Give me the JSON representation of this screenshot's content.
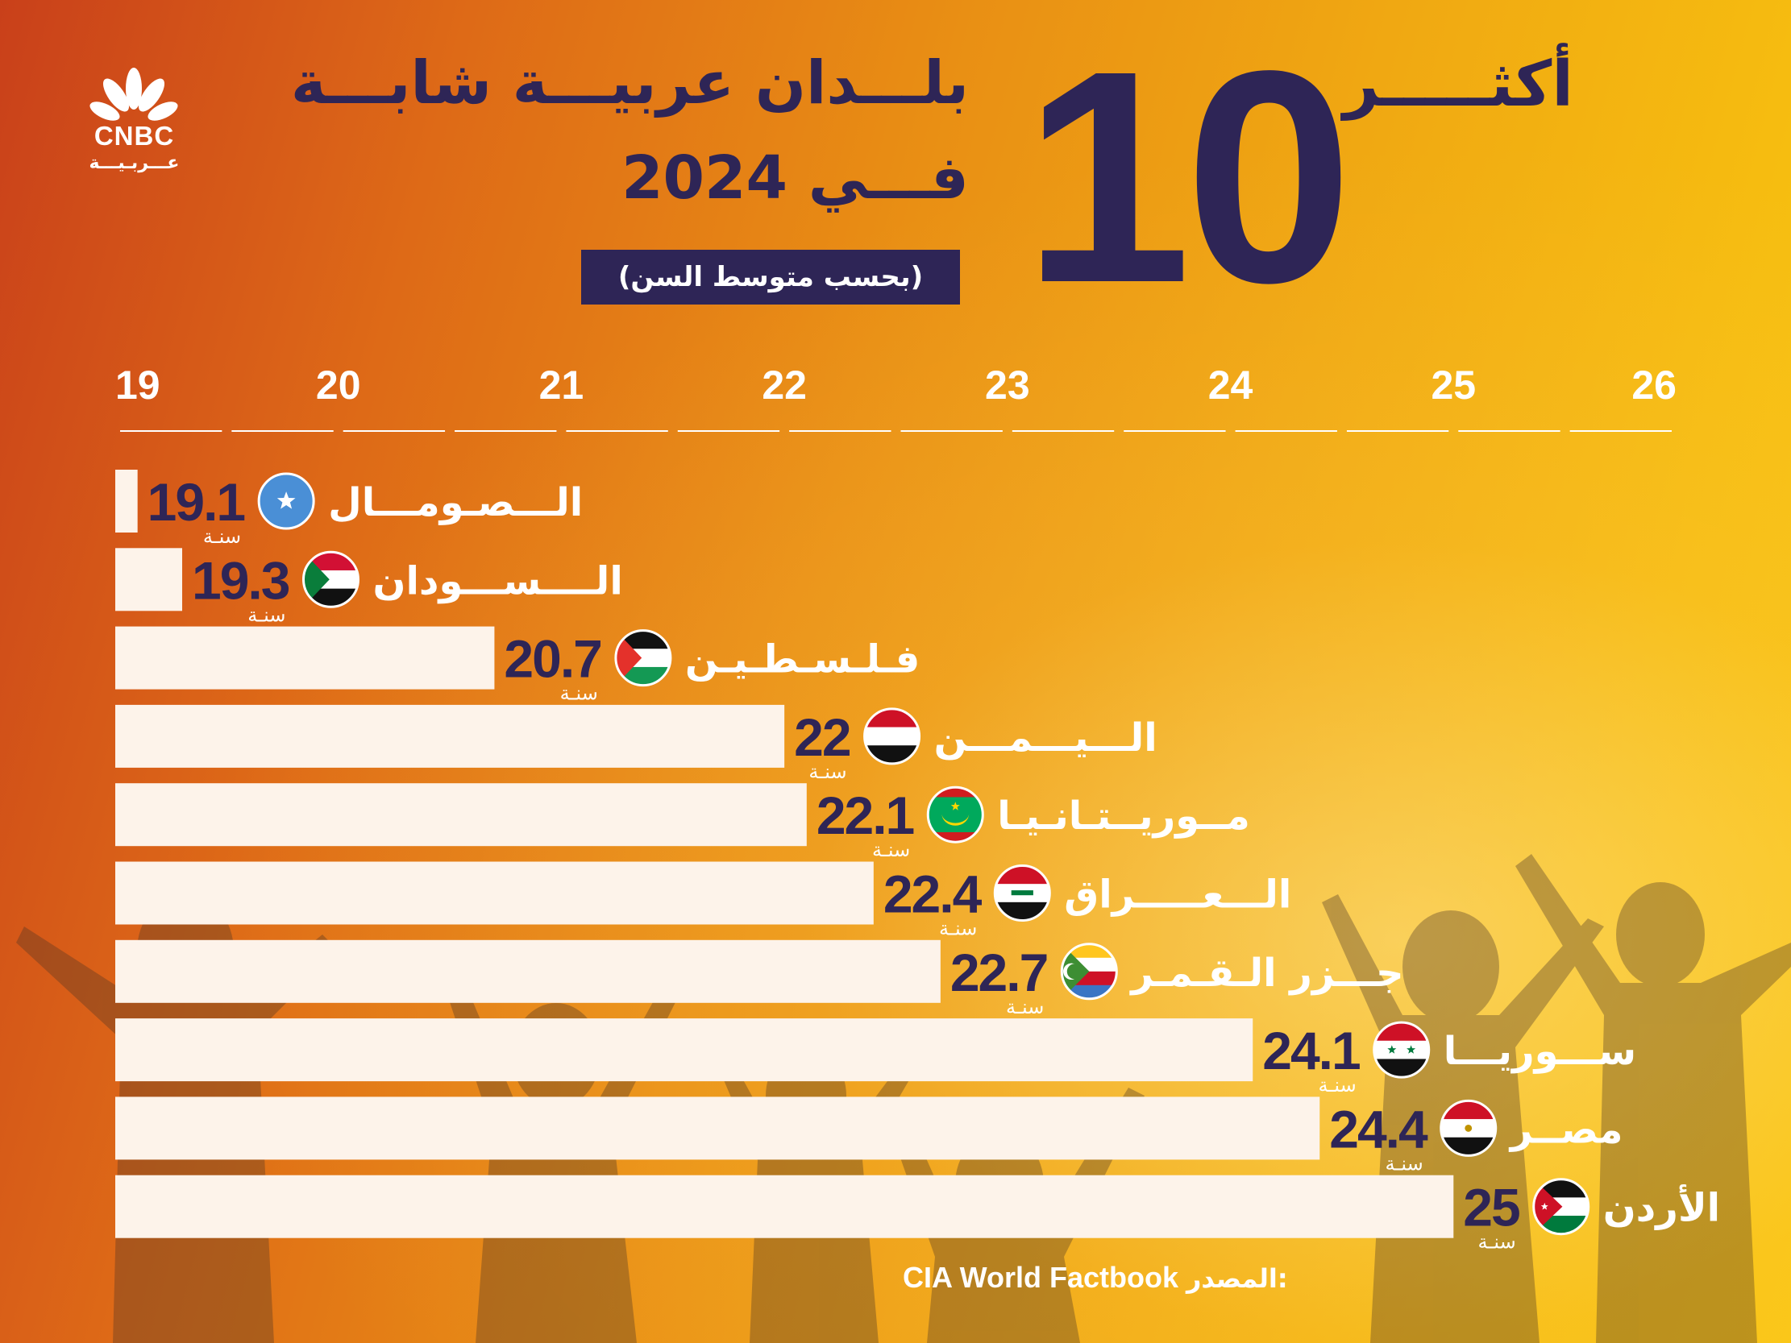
{
  "brand": {
    "name": "CNBC",
    "sub": "عـــربـيـــة"
  },
  "title": {
    "prefix": "أكثـــــر",
    "number": "10",
    "line1": "بلـــدان عربيـــة شابـــة",
    "line2": "فـــي 2024",
    "subtitle": "(بحسب متوسط السن)"
  },
  "source": {
    "label": "المصدر:",
    "value": "CIA World Factbook"
  },
  "colors": {
    "ink": "#2e2556",
    "bar": "#fdf3ea",
    "white": "#ffffff"
  },
  "chart_data": {
    "type": "bar",
    "orientation": "horizontal",
    "xlim": [
      19,
      26
    ],
    "ticks": [
      "19",
      "20",
      "21",
      "22",
      "23",
      "24",
      "25",
      "26"
    ],
    "unit": "سنـة",
    "categories": [
      "الـــصـومـــال",
      "الــــســـودان",
      "فـلـسـطـيـن",
      "الـــيـــمـــن",
      "مــوريــتـانـيـا",
      "الـــعـــــراق",
      "جـــزر الـقـمـر",
      "ســـوريـــا",
      "مصــر",
      "الأردن"
    ],
    "values": [
      19.1,
      19.3,
      20.7,
      22,
      22.1,
      22.4,
      22.7,
      24.1,
      24.4,
      25
    ],
    "value_labels": [
      "19.1",
      "19.3",
      "20.7",
      "22",
      "22.1",
      "22.4",
      "22.7",
      "24.1",
      "24.4",
      "25"
    ],
    "flags": [
      "somalia-flag-icon",
      "sudan-flag-icon",
      "palestine-flag-icon",
      "yemen-flag-icon",
      "mauritania-flag-icon",
      "iraq-flag-icon",
      "comoros-flag-icon",
      "syria-flag-icon",
      "egypt-flag-icon",
      "jordan-flag-icon"
    ]
  }
}
